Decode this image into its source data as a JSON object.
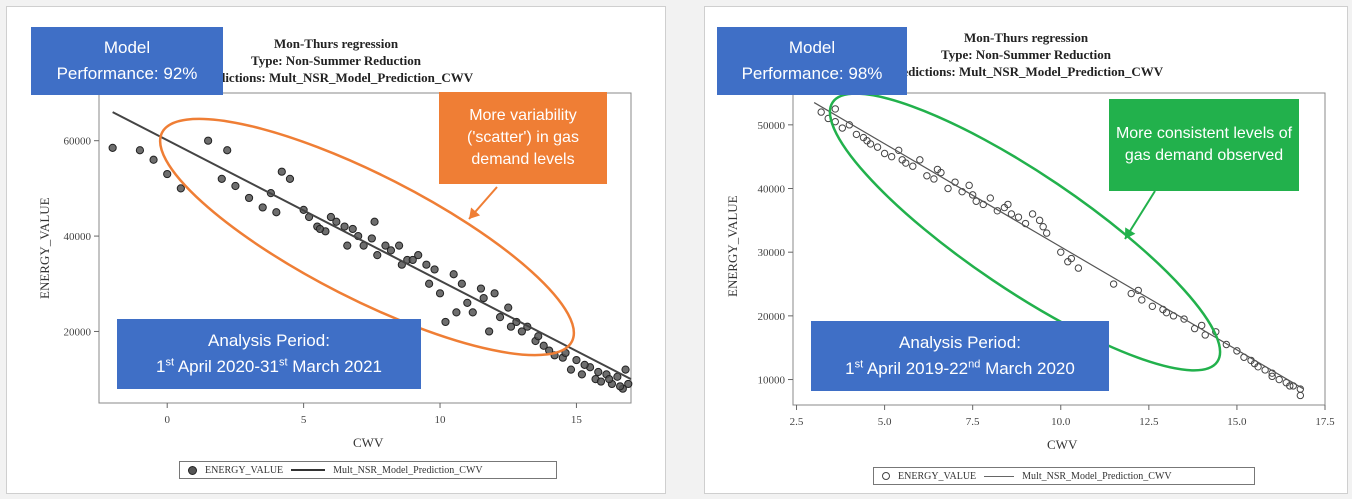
{
  "charts": [
    {
      "title_lines": [
        "Mon-Thurs regression",
        "Type: Non-Summer Reduction",
        "Predictions: Mult_NSR_Model_Prediction_CWV"
      ],
      "model_box": {
        "line1": "Model",
        "line2": "Performance: 92%"
      },
      "callout": {
        "text": "More variability ('scatter') in gas demand levels",
        "color": "#ef7e35"
      },
      "period_box": {
        "label": "Analysis Period:",
        "d1": "1",
        "s1": "st",
        "m1": " April 2020-31",
        "s2": "st",
        "m2": " March 2021"
      },
      "legend": {
        "observed": "ENERGY_VALUE",
        "predicted": "Mult_NSR_Model_Prediction_CWV"
      }
    },
    {
      "title_lines": [
        "Mon-Thurs regression",
        "Type: Non-Summer Reduction",
        "Predictions: Mult_NSR_Model_Prediction_CWV"
      ],
      "model_box": {
        "line1": "Model",
        "line2": "Performance: 98%"
      },
      "callout": {
        "text": "More consistent levels of gas demand observed",
        "color": "#22b14c"
      },
      "period_box": {
        "label": "Analysis Period:",
        "d1": "1",
        "s1": "st",
        "m1": " April 2019-22",
        "s2": "nd",
        "m2": " March 2020"
      },
      "legend": {
        "observed": "ENERGY_VALUE",
        "predicted": "Mult_NSR_Model_Prediction_CWV"
      }
    }
  ],
  "chart_data": [
    {
      "type": "scatter",
      "xlabel": "CWV",
      "ylabel": "ENERGY_VALUE",
      "xlim": [
        -2.5,
        17
      ],
      "ylim": [
        5000,
        70000
      ],
      "xticks": [
        "0",
        "5",
        "10",
        "15"
      ],
      "yticks": [
        "20000",
        "40000",
        "60000"
      ],
      "series": [
        {
          "name": "ENERGY_VALUE",
          "x": [
            -2.0,
            -1.0,
            -0.5,
            0.0,
            0.5,
            1.5,
            2.0,
            2.5,
            3.0,
            3.5,
            4.0,
            4.2,
            4.5,
            5.0,
            5.2,
            5.5,
            5.8,
            6.0,
            6.2,
            6.5,
            6.8,
            7.0,
            7.2,
            7.5,
            7.7,
            8.0,
            8.2,
            8.5,
            8.8,
            9.0,
            9.2,
            9.5,
            9.8,
            10.0,
            10.2,
            10.5,
            10.8,
            11.0,
            11.2,
            11.5,
            11.8,
            12.0,
            12.2,
            12.5,
            12.8,
            13.0,
            13.2,
            13.5,
            13.8,
            14.0,
            14.2,
            14.5,
            14.8,
            15.0,
            15.2,
            15.5,
            15.7,
            15.9,
            16.1,
            16.3,
            16.5,
            16.7,
            16.9,
            2.2,
            3.8,
            5.6,
            6.6,
            7.6,
            8.6,
            9.6,
            10.6,
            11.6,
            12.6,
            13.6,
            14.6,
            15.3,
            15.8,
            16.2,
            16.6,
            16.8
          ],
          "y": [
            58500,
            58000,
            56000,
            53000,
            50000,
            60000,
            52000,
            50500,
            48000,
            46000,
            45000,
            53500,
            52000,
            45500,
            44000,
            42000,
            41000,
            44000,
            43000,
            42000,
            41500,
            40000,
            38000,
            39500,
            36000,
            38000,
            37000,
            38000,
            35000,
            35000,
            36000,
            34000,
            33000,
            28000,
            22000,
            32000,
            30000,
            26000,
            24000,
            29000,
            20000,
            28000,
            23000,
            25000,
            22000,
            20000,
            21000,
            18000,
            17000,
            16000,
            15000,
            14500,
            12000,
            14000,
            11000,
            12500,
            10000,
            9500,
            11000,
            9000,
            10500,
            8000,
            9000,
            58000,
            49000,
            41500,
            38000,
            43000,
            34000,
            30000,
            24000,
            27000,
            21000,
            19000,
            15500,
            13000,
            11500,
            10000,
            8500,
            12000
          ]
        },
        {
          "name": "Mult_NSR_Model_Prediction_CWV",
          "x": [
            -2.0,
            17.0
          ],
          "y": [
            66000,
            10000
          ]
        }
      ],
      "legend_position": "bottom",
      "grid": false
    },
    {
      "type": "scatter",
      "xlabel": "CWV",
      "ylabel": "ENERGY_VALUE",
      "xlim": [
        2.4,
        17.5
      ],
      "ylim": [
        6000,
        55000
      ],
      "xticks": [
        "2.5",
        "5.0",
        "7.5",
        "10.0",
        "12.5",
        "15.0",
        "17.5"
      ],
      "yticks": [
        "10000",
        "20000",
        "30000",
        "40000",
        "50000"
      ],
      "series": [
        {
          "name": "ENERGY_VALUE",
          "x": [
            3.2,
            3.4,
            3.6,
            3.8,
            4.0,
            4.2,
            4.4,
            4.6,
            4.8,
            5.0,
            5.2,
            5.4,
            5.6,
            5.8,
            6.0,
            6.2,
            6.4,
            6.6,
            6.8,
            7.0,
            7.2,
            7.4,
            7.6,
            7.8,
            8.0,
            8.2,
            8.4,
            8.6,
            8.8,
            9.0,
            9.2,
            9.4,
            9.6,
            10.0,
            10.2,
            10.5,
            11.5,
            12.0,
            12.3,
            12.6,
            12.9,
            13.2,
            13.5,
            13.8,
            14.1,
            14.4,
            14.7,
            15.0,
            15.2,
            15.4,
            15.6,
            15.8,
            16.0,
            16.2,
            16.4,
            16.6,
            16.8,
            3.6,
            4.5,
            5.5,
            6.5,
            7.5,
            8.5,
            9.5,
            10.3,
            12.2,
            13.0,
            14.0,
            15.5,
            16.0,
            16.5,
            16.8
          ],
          "y": [
            52000,
            51000,
            50500,
            49500,
            50000,
            48500,
            48000,
            47000,
            46500,
            45500,
            45000,
            46000,
            44000,
            43500,
            44500,
            42000,
            41500,
            42500,
            40000,
            41000,
            39500,
            40500,
            38000,
            37500,
            38500,
            36500,
            37000,
            36000,
            35500,
            34500,
            36000,
            35000,
            33000,
            30000,
            28500,
            27500,
            25000,
            23500,
            22500,
            21500,
            21000,
            20000,
            19500,
            18000,
            17000,
            17500,
            15500,
            14500,
            13500,
            13000,
            12000,
            11500,
            11000,
            10000,
            9500,
            9000,
            8500,
            52500,
            47500,
            44500,
            43000,
            39000,
            37500,
            34000,
            29000,
            24000,
            20500,
            18500,
            12500,
            10500,
            9000,
            7500
          ]
        },
        {
          "name": "Mult_NSR_Model_Prediction_CWV",
          "x": [
            3.0,
            16.9
          ],
          "y": [
            53500,
            8500
          ]
        }
      ],
      "legend_position": "bottom",
      "grid": false
    }
  ]
}
